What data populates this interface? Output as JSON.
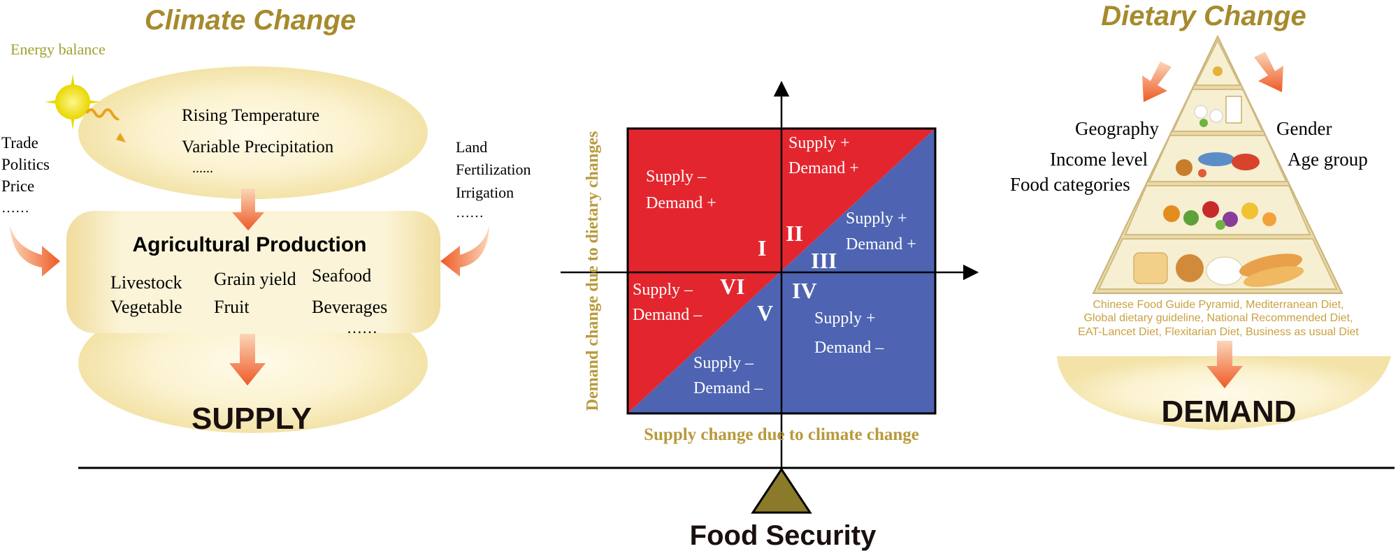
{
  "left": {
    "heading": "Climate Change",
    "energy_label": "Energy balance",
    "climate_factors": [
      "Rising Temperature",
      "Variable Precipitation",
      "......"
    ],
    "socio_factors": [
      "Trade",
      "Politics",
      "Price",
      "……"
    ],
    "land_factors": [
      "Land",
      "Fertilization",
      "Irrigation",
      "……"
    ],
    "production_title": "Agricultural Production",
    "products_col1": [
      "Livestock",
      "Vegetable"
    ],
    "products_col2": [
      "Grain yield",
      "Fruit"
    ],
    "products_col3": [
      "Seafood",
      "Beverages",
      "……"
    ],
    "supply_label": "SUPPLY"
  },
  "center": {
    "y_axis_label": "Demand change due to dietary changes",
    "x_axis_label": "Supply change due to climate change",
    "regions": {
      "I": "I",
      "II": "II",
      "III": "III",
      "IV": "IV",
      "V": "V",
      "VI": "VI"
    },
    "labels": {
      "q_ul": [
        "Supply  –",
        "Demand +"
      ],
      "q_top": [
        "Supply +",
        "Demand +"
      ],
      "q_right": [
        "Supply +",
        "Demand +"
      ],
      "q_ll": [
        "Supply –",
        "Demand –"
      ],
      "q_bottom": [
        "Supply –",
        "Demand –"
      ],
      "q_lr": [
        "Supply +",
        "Demand –"
      ]
    },
    "colors": {
      "red": "#E3262E",
      "blue": "#4E64B2"
    }
  },
  "right": {
    "heading": "Dietary Change",
    "factors_left": [
      "Geography",
      "Income level",
      "Food categories"
    ],
    "factors_right": [
      "Gender",
      "Age group"
    ],
    "diets": [
      "Chinese Food Guide Pyramid, Mediterranean Diet,",
      "Global dietary guideline, National Recommended Diet,",
      "EAT-Lancet Diet, Flexitarian Diet, Business as usual Diet"
    ],
    "demand_label": "DEMAND"
  },
  "bottom": {
    "food_security_label": "Food Security"
  },
  "colors": {
    "heading_gold": "#A68A2C",
    "energy_green": "#A3A030",
    "axis_label_gold": "#B89A3C",
    "diet_text_gold": "#C9A241",
    "arrow_orange": "#EE5A25",
    "fulcrum_olive": "#8A7A2A"
  }
}
